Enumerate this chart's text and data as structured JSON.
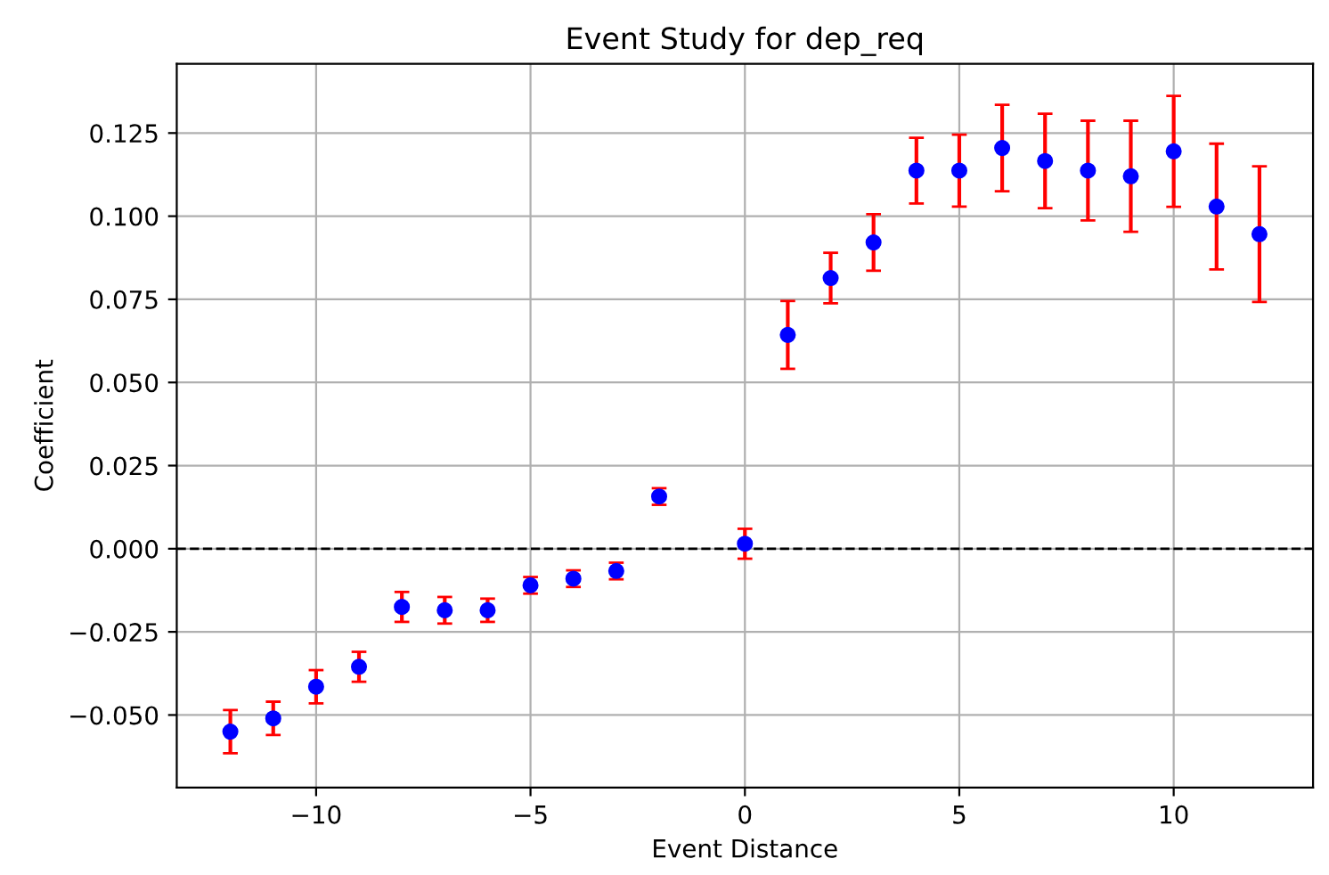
{
  "chart_data": {
    "type": "scatter",
    "title": "Event Study for dep_req",
    "xlabel": "Event Distance",
    "ylabel": "Coefficient",
    "x": [
      -12,
      -11,
      -10,
      -9,
      -8,
      -7,
      -6,
      -5,
      -4,
      -3,
      -2,
      0,
      1,
      2,
      3,
      4,
      5,
      6,
      7,
      8,
      9,
      10,
      11,
      12
    ],
    "series": [
      {
        "color": "#0000ff",
        "values": [
          -0.055,
          -0.051,
          -0.0415,
          -0.0355,
          -0.0175,
          -0.0185,
          -0.0185,
          -0.011,
          -0.009,
          -0.0067,
          0.0157,
          0.0015,
          0.0643,
          0.0814,
          0.0921,
          0.1137,
          0.1137,
          0.1205,
          0.1166,
          0.1137,
          0.112,
          0.1195,
          0.1029,
          0.0946
        ],
        "errors": [
          0.0065,
          0.005,
          0.005,
          0.0045,
          0.0045,
          0.004,
          0.0035,
          0.0025,
          0.0025,
          0.0025,
          0.0025,
          0.0045,
          0.0102,
          0.0076,
          0.0085,
          0.0099,
          0.0108,
          0.013,
          0.0142,
          0.015,
          0.0167,
          0.0167,
          0.0189,
          0.0204
        ]
      }
    ],
    "xlim": [
      -13.25,
      13.25
    ],
    "xticks": [
      {
        "value": -10,
        "label": "−10"
      },
      {
        "value": -5,
        "label": "−5"
      },
      0,
      5,
      10
    ],
    "ylim": [
      -0.0718,
      0.1458
    ],
    "yticks": [
      {
        "value": -0.05,
        "label": "−0.050"
      },
      {
        "value": -0.025,
        "label": "−0.025"
      },
      {
        "value": 0,
        "label": "0.000"
      },
      {
        "value": 0.025,
        "label": "0.025"
      },
      {
        "value": 0.05,
        "label": "0.050"
      },
      {
        "value": 0.075,
        "label": "0.075"
      },
      {
        "value": 0.1,
        "label": "0.100"
      },
      {
        "value": 0.125,
        "label": "0.125"
      }
    ],
    "ref_lines": [
      {
        "axis": "y",
        "value": 0,
        "color": "#000000",
        "line_style": "dashed"
      }
    ],
    "grid": true,
    "marker": "circle"
  }
}
